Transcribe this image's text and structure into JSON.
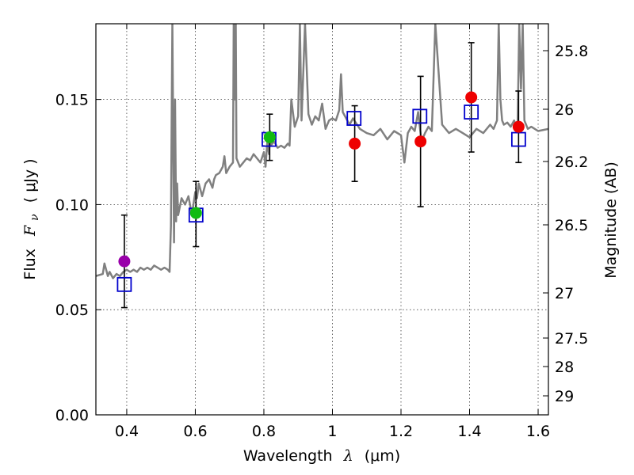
{
  "chart_data": {
    "type": "scatter",
    "xlabel_text": "Wavelength",
    "xlabel_symbol": "λ",
    "xlabel_unit": "(μm)",
    "ylabel_text": "Flux",
    "ylabel_symbol": "F",
    "ylabel_sub": "ν",
    "ylabel_unit": "( μJy )",
    "y2label": "Magnitude (AB)",
    "xlim": [
      0.31,
      1.63
    ],
    "ylim": [
      0.0,
      0.186
    ],
    "xticks": [
      0.4,
      0.6,
      0.8,
      1.0,
      1.2,
      1.4,
      1.6
    ],
    "xtick_labels": [
      "0.4",
      "0.6",
      "0.8",
      "1",
      "1.2",
      "1.4",
      "1.6"
    ],
    "yticks": [
      0.0,
      0.05,
      0.1,
      0.15
    ],
    "ytick_labels": [
      "0.00",
      "0.05",
      "0.10",
      "0.15"
    ],
    "magnitude_ticks": [
      "25.8",
      "26",
      "26.2",
      "26.5",
      "27",
      "27.5",
      "28",
      "29"
    ],
    "colors": {
      "spectrum": "#808080",
      "model": "#0000cc",
      "purple": "#9900aa",
      "green": "#11bb11",
      "red": "#ee0000",
      "error": "#000000"
    },
    "observed": [
      {
        "x": 0.393,
        "y": 0.073,
        "err_lo": 0.022,
        "err_hi": 0.022,
        "color": "purple"
      },
      {
        "x": 0.602,
        "y": 0.096,
        "err_lo": 0.016,
        "err_hi": 0.015,
        "color": "green"
      },
      {
        "x": 0.817,
        "y": 0.132,
        "err_lo": 0.011,
        "err_hi": 0.011,
        "color": "green"
      },
      {
        "x": 1.065,
        "y": 0.129,
        "err_lo": 0.018,
        "err_hi": 0.018,
        "color": "red"
      },
      {
        "x": 1.257,
        "y": 0.13,
        "err_lo": 0.031,
        "err_hi": 0.031,
        "color": "red"
      },
      {
        "x": 1.405,
        "y": 0.151,
        "err_lo": 0.026,
        "err_hi": 0.026,
        "color": "red"
      },
      {
        "x": 1.543,
        "y": 0.137,
        "err_lo": 0.017,
        "err_hi": 0.017,
        "color": "red"
      }
    ],
    "model_points": [
      {
        "x": 0.393,
        "y": 0.062
      },
      {
        "x": 0.602,
        "y": 0.095
      },
      {
        "x": 0.815,
        "y": 0.131
      },
      {
        "x": 1.063,
        "y": 0.141
      },
      {
        "x": 1.255,
        "y": 0.142
      },
      {
        "x": 1.405,
        "y": 0.144
      },
      {
        "x": 1.543,
        "y": 0.131
      }
    ],
    "spectrum": {
      "x": [
        0.31,
        0.33,
        0.335,
        0.345,
        0.35,
        0.36,
        0.37,
        0.38,
        0.39,
        0.4,
        0.41,
        0.42,
        0.43,
        0.44,
        0.45,
        0.46,
        0.47,
        0.48,
        0.49,
        0.5,
        0.51,
        0.52,
        0.525,
        0.529,
        0.531,
        0.533,
        0.536,
        0.538,
        0.541,
        0.544,
        0.547,
        0.55,
        0.56,
        0.57,
        0.58,
        0.59,
        0.6,
        0.605,
        0.61,
        0.62,
        0.63,
        0.64,
        0.65,
        0.655,
        0.66,
        0.67,
        0.68,
        0.685,
        0.69,
        0.7,
        0.71,
        0.712,
        0.715,
        0.718,
        0.72,
        0.73,
        0.74,
        0.75,
        0.76,
        0.77,
        0.78,
        0.79,
        0.8,
        0.805,
        0.81,
        0.815,
        0.818,
        0.82,
        0.83,
        0.84,
        0.85,
        0.86,
        0.87,
        0.875,
        0.88,
        0.89,
        0.9,
        0.905,
        0.91,
        0.92,
        0.93,
        0.94,
        0.95,
        0.96,
        0.97,
        0.98,
        0.99,
        1.0,
        1.01,
        1.02,
        1.025,
        1.03,
        1.04,
        1.05,
        1.06,
        1.08,
        1.1,
        1.12,
        1.14,
        1.16,
        1.18,
        1.2,
        1.21,
        1.22,
        1.23,
        1.24,
        1.25,
        1.26,
        1.27,
        1.28,
        1.29,
        1.3,
        1.32,
        1.34,
        1.36,
        1.38,
        1.4,
        1.42,
        1.44,
        1.46,
        1.47,
        1.48,
        1.485,
        1.49,
        1.495,
        1.5,
        1.51,
        1.52,
        1.53,
        1.54,
        1.545,
        1.55,
        1.555,
        1.56,
        1.57,
        1.58,
        1.6,
        1.63
      ],
      "y": [
        0.066,
        0.067,
        0.072,
        0.066,
        0.068,
        0.065,
        0.067,
        0.066,
        0.068,
        0.069,
        0.068,
        0.069,
        0.068,
        0.07,
        0.069,
        0.07,
        0.069,
        0.071,
        0.07,
        0.069,
        0.07,
        0.069,
        0.068,
        0.09,
        0.14,
        0.186,
        0.12,
        0.082,
        0.15,
        0.092,
        0.11,
        0.095,
        0.103,
        0.1,
        0.104,
        0.095,
        0.106,
        0.103,
        0.11,
        0.104,
        0.11,
        0.112,
        0.108,
        0.112,
        0.114,
        0.115,
        0.118,
        0.123,
        0.115,
        0.118,
        0.12,
        0.186,
        0.15,
        0.186,
        0.122,
        0.118,
        0.12,
        0.122,
        0.121,
        0.124,
        0.122,
        0.12,
        0.125,
        0.118,
        0.13,
        0.124,
        0.135,
        0.128,
        0.13,
        0.127,
        0.128,
        0.127,
        0.129,
        0.128,
        0.15,
        0.137,
        0.142,
        0.186,
        0.14,
        0.186,
        0.143,
        0.138,
        0.142,
        0.14,
        0.148,
        0.136,
        0.14,
        0.141,
        0.14,
        0.145,
        0.162,
        0.144,
        0.141,
        0.138,
        0.141,
        0.136,
        0.134,
        0.133,
        0.136,
        0.131,
        0.135,
        0.133,
        0.12,
        0.134,
        0.137,
        0.135,
        0.144,
        0.13,
        0.134,
        0.137,
        0.135,
        0.186,
        0.138,
        0.134,
        0.136,
        0.134,
        0.132,
        0.136,
        0.134,
        0.138,
        0.136,
        0.14,
        0.186,
        0.15,
        0.14,
        0.138,
        0.139,
        0.137,
        0.14,
        0.136,
        0.186,
        0.155,
        0.186,
        0.14,
        0.136,
        0.137,
        0.135,
        0.136
      ]
    }
  }
}
